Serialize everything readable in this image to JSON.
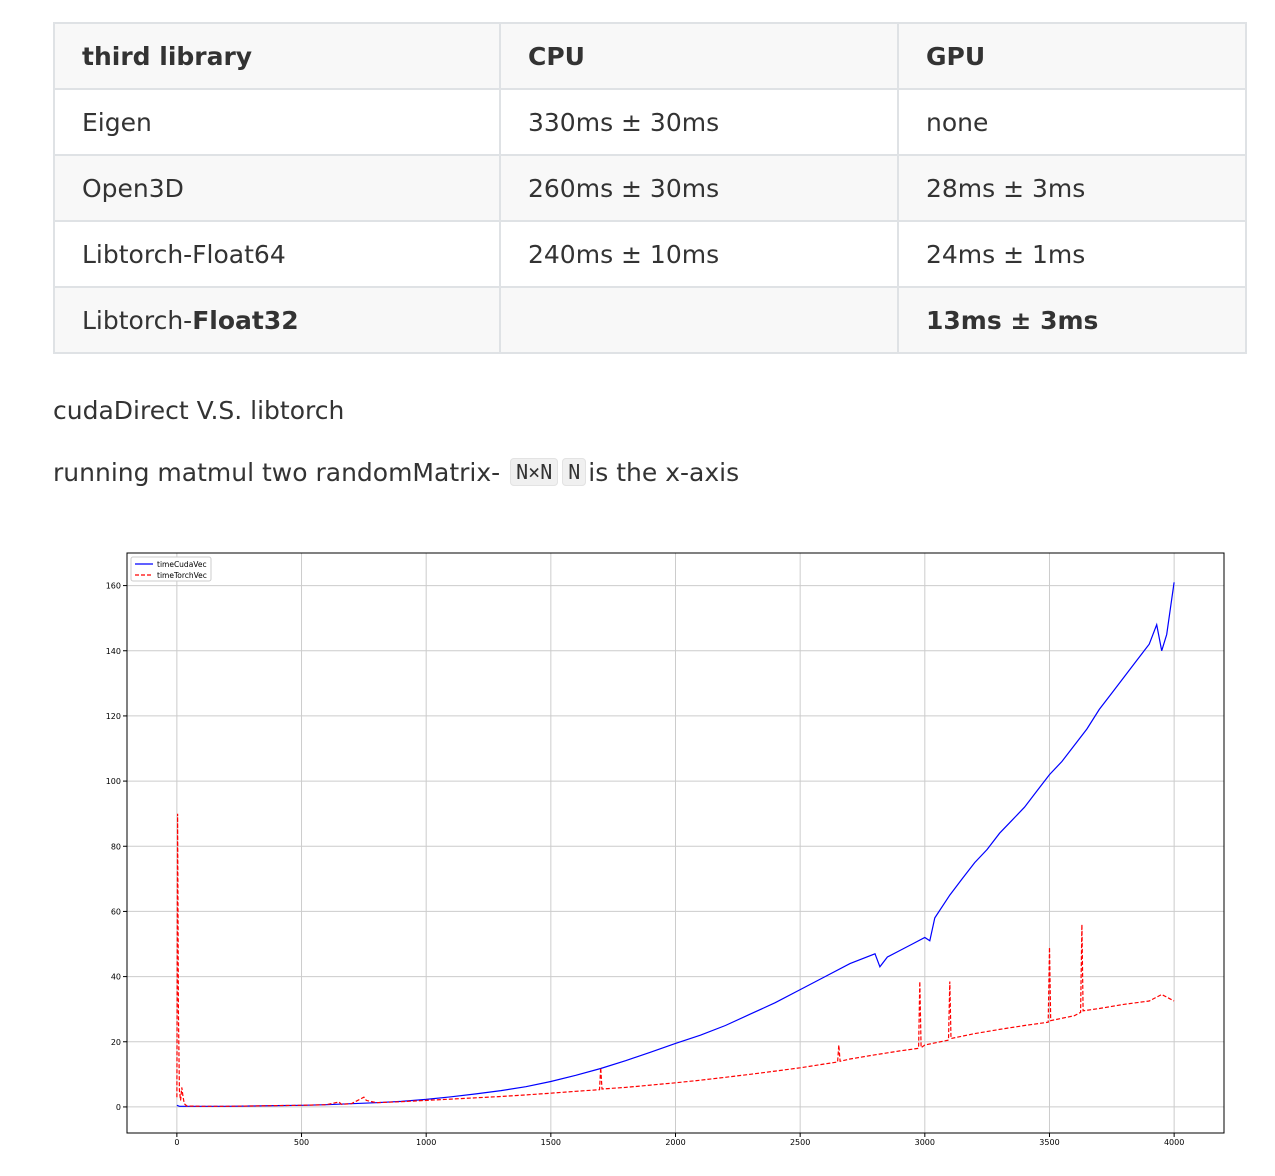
{
  "table": {
    "headers": [
      "third library",
      "CPU",
      "GPU"
    ],
    "rows": [
      {
        "lib": "Eigen",
        "cpu": "330ms ± 30ms",
        "gpu": "none"
      },
      {
        "lib": "Open3D",
        "cpu": "260ms ± 30ms",
        "gpu": "28ms ± 3ms"
      },
      {
        "lib": "Libtorch-Float64",
        "cpu": "240ms ± 10ms",
        "gpu": "24ms ± 1ms"
      },
      {
        "lib_prefix": "Libtorch-",
        "lib_bold": "Float32",
        "cpu": "",
        "gpu": "13ms ± 3ms"
      }
    ]
  },
  "text": {
    "heading": "cudaDirect V.S. libtorch",
    "desc_prefix": "running matmul two randomMatrix- ",
    "code1": "N×N",
    "code2": "N",
    "desc_suffix": "is the x-axis"
  },
  "chart_data": {
    "type": "line",
    "title": "",
    "xlabel": "",
    "ylabel": "",
    "xlim": [
      -200,
      4200
    ],
    "ylim": [
      -8,
      170
    ],
    "xticks": [
      0,
      500,
      1000,
      1500,
      2000,
      2500,
      3000,
      3500,
      4000
    ],
    "yticks": [
      0,
      20,
      40,
      60,
      80,
      100,
      120,
      140,
      160
    ],
    "grid": true,
    "legend_position": "top-left",
    "series": [
      {
        "name": "timeCudaVec",
        "color": "#0000ff",
        "style": "solid",
        "x": [
          0,
          10,
          20,
          40,
          100,
          200,
          300,
          400,
          500,
          600,
          700,
          800,
          900,
          1000,
          1100,
          1200,
          1300,
          1400,
          1500,
          1600,
          1700,
          1800,
          1900,
          2000,
          2100,
          2200,
          2300,
          2400,
          2500,
          2600,
          2700,
          2800,
          2820,
          2850,
          2900,
          2950,
          3000,
          3020,
          3040,
          3100,
          3150,
          3200,
          3250,
          3300,
          3350,
          3400,
          3450,
          3500,
          3550,
          3600,
          3650,
          3700,
          3750,
          3800,
          3850,
          3900,
          3930,
          3950,
          3970,
          4000
        ],
        "y": [
          0.5,
          0.2,
          0.2,
          0.2,
          0.2,
          0.2,
          0.3,
          0.4,
          0.5,
          0.7,
          1.0,
          1.3,
          1.7,
          2.3,
          3.1,
          4.0,
          5.0,
          6.2,
          7.8,
          9.7,
          11.8,
          14.2,
          16.8,
          19.5,
          22.0,
          25.0,
          28.5,
          32.0,
          36.0,
          40.0,
          44.0,
          47.0,
          43.0,
          46.0,
          48.0,
          50.0,
          52.0,
          51.0,
          58.0,
          65.0,
          70.0,
          75.0,
          79.0,
          84.0,
          88.0,
          92.0,
          97.0,
          102.0,
          106.0,
          111.0,
          116.0,
          122.0,
          127.0,
          132.0,
          137.0,
          142.0,
          148.0,
          140.0,
          145.0,
          161.0
        ]
      },
      {
        "name": "timeTorchVec",
        "color": "#ff0000",
        "style": "dashed",
        "x": [
          0,
          3,
          6,
          10,
          15,
          20,
          25,
          30,
          40,
          100,
          200,
          300,
          400,
          500,
          600,
          650,
          660,
          700,
          750,
          760,
          800,
          900,
          1000,
          1100,
          1200,
          1300,
          1400,
          1500,
          1600,
          1695,
          1700,
          1705,
          1800,
          1900,
          2000,
          2100,
          2200,
          2300,
          2400,
          2500,
          2600,
          2650,
          2655,
          2660,
          2700,
          2800,
          2900,
          2975,
          2980,
          2985,
          3000,
          3095,
          3100,
          3105,
          3200,
          3300,
          3400,
          3495,
          3500,
          3505,
          3600,
          3625,
          3630,
          3635,
          3700,
          3800,
          3900,
          3950,
          4000
        ],
        "y": [
          3.0,
          90.0,
          30.0,
          5.0,
          2.0,
          6.0,
          3.0,
          1.0,
          0.3,
          0.2,
          0.2,
          0.3,
          0.4,
          0.5,
          0.7,
          1.5,
          0.8,
          1.0,
          3.0,
          2.0,
          1.3,
          1.6,
          2.0,
          2.4,
          2.8,
          3.2,
          3.7,
          4.2,
          4.8,
          5.3,
          12.0,
          5.5,
          6.0,
          6.7,
          7.4,
          8.2,
          9.1,
          10.0,
          11.0,
          12.0,
          13.2,
          13.8,
          19.0,
          14.0,
          14.7,
          16.0,
          17.2,
          18.0,
          38.5,
          18.2,
          19.0,
          20.5,
          38.5,
          21.0,
          22.5,
          23.8,
          25.0,
          26.0,
          49.0,
          26.5,
          28.0,
          29.0,
          56.0,
          29.5,
          30.2,
          31.5,
          32.5,
          34.5,
          32.5
        ]
      }
    ]
  }
}
